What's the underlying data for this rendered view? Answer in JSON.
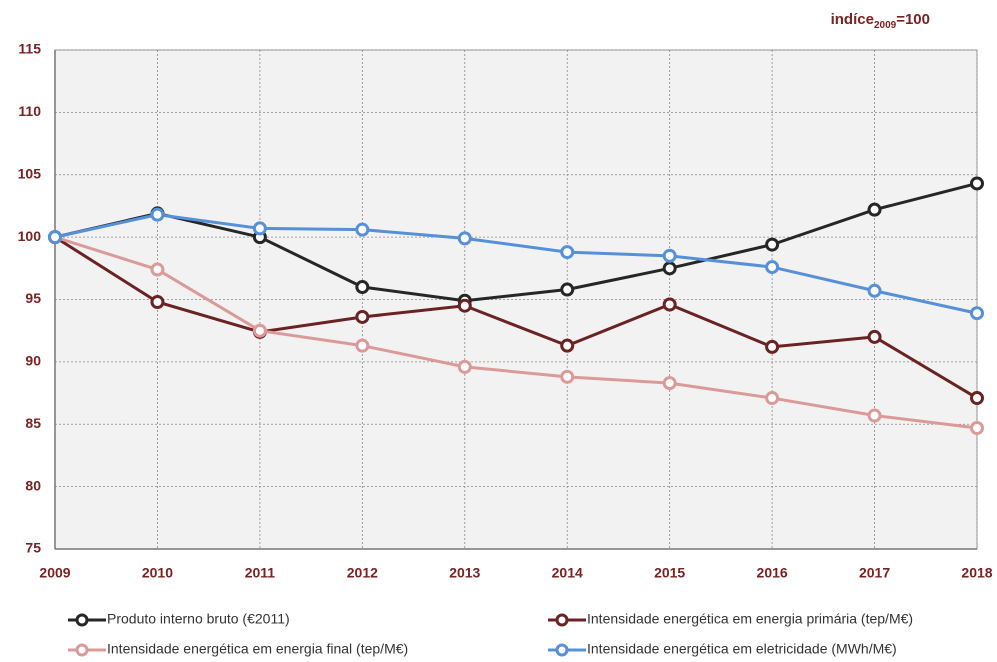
{
  "chart_data": {
    "type": "line",
    "annotation": {
      "text": "indíce",
      "sub": "2009",
      "tail": "=100"
    },
    "x": [
      2009,
      2010,
      2011,
      2012,
      2013,
      2014,
      2015,
      2016,
      2017,
      2018
    ],
    "xlim": [
      2009,
      2018
    ],
    "xticks": [
      2009,
      2010,
      2011,
      2012,
      2013,
      2014,
      2015,
      2016,
      2017,
      2018
    ],
    "ylim": [
      75,
      115
    ],
    "yticks": [
      75,
      80,
      85,
      90,
      95,
      100,
      105,
      110,
      115
    ],
    "grid": true,
    "legend": "bottom",
    "series": [
      {
        "name": "Produto interno bruto (€2011)",
        "color": "#262626",
        "values": [
          100,
          101.9,
          100,
          96,
          94.9,
          95.8,
          97.5,
          99.4,
          102.2,
          104.3
        ]
      },
      {
        "name": "Intensidade energética em energia primária (tep/M€)",
        "color": "#6b2222",
        "values": [
          100,
          94.8,
          92.4,
          93.6,
          94.5,
          91.3,
          94.6,
          91.2,
          92,
          87.1
        ]
      },
      {
        "name": "Intensidade energética em energia final (tep/M€)",
        "color": "#da9a98",
        "values": [
          100,
          97.4,
          92.5,
          91.3,
          89.6,
          88.8,
          88.3,
          87.1,
          85.7,
          84.7
        ]
      },
      {
        "name": "Intensidade energética em eletricidade (MWh/M€)",
        "color": "#5590d8",
        "values": [
          100,
          101.8,
          100.7,
          100.6,
          99.9,
          98.8,
          98.5,
          97.6,
          95.7,
          93.9
        ]
      }
    ]
  }
}
